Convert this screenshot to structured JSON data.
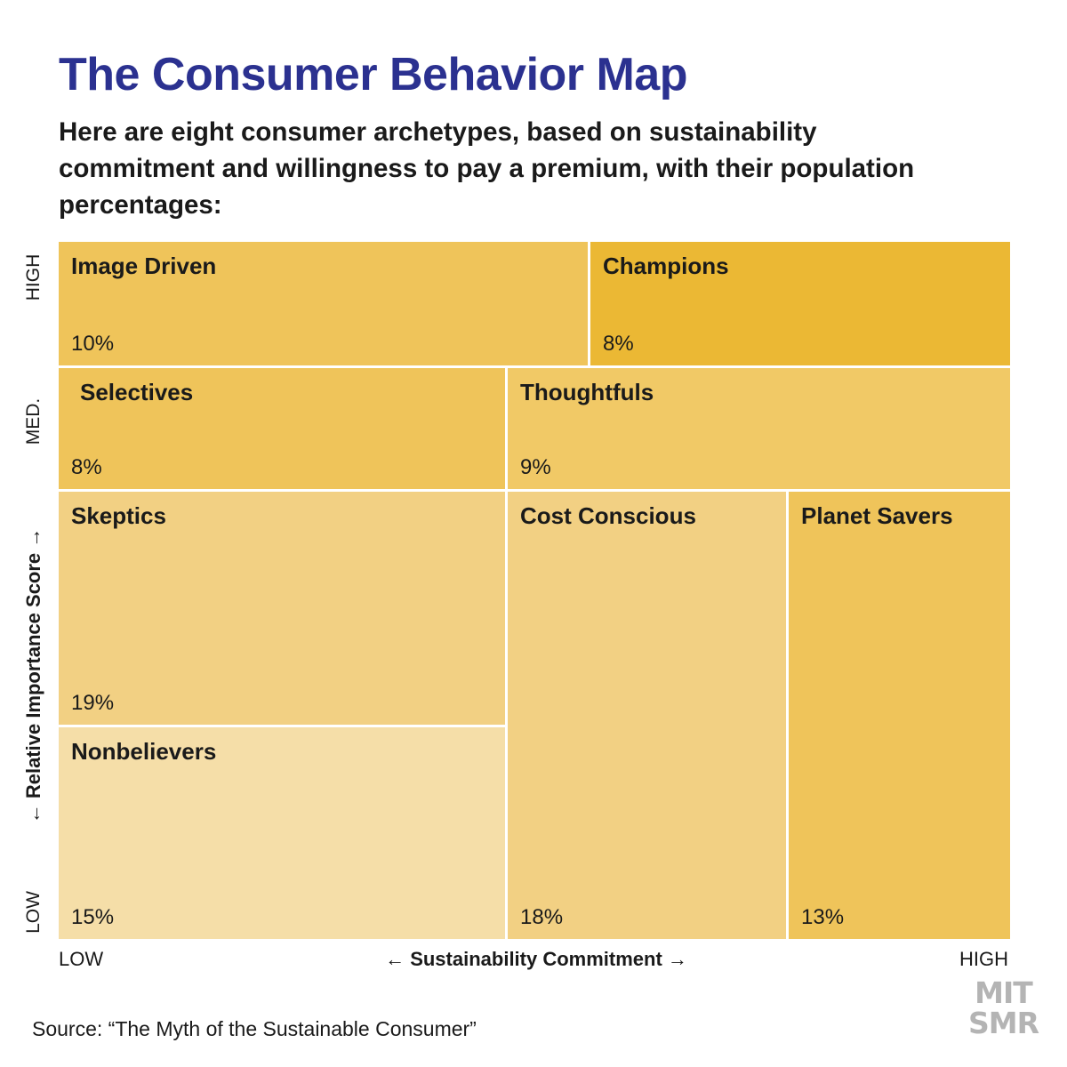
{
  "title": "The Consumer Behavior Map",
  "subtitle": "Here are eight consumer archetypes, based on sustainability commitment and willingness to pay a premium, with their population percentages:",
  "chart_data": {
    "type": "treemap",
    "xlabel": "← Sustainability Commitment →",
    "ylabel": "← Relative Importance Score →",
    "x_ticks": [
      "LOW",
      "HIGH"
    ],
    "y_ticks": [
      "HIGH",
      "MED.",
      "LOW"
    ],
    "cells": [
      {
        "name": "Image Driven",
        "percent": "10%",
        "value": 10,
        "color": "#efc45a"
      },
      {
        "name": "Champions",
        "percent": "8%",
        "value": 8,
        "color": "#ebb834"
      },
      {
        "name": "Selectives",
        "percent": "8%",
        "value": 8,
        "color": "#efc45a"
      },
      {
        "name": "Thoughtfuls",
        "percent": "9%",
        "value": 9,
        "color": "#f1c966"
      },
      {
        "name": "Skeptics",
        "percent": "19%",
        "value": 19,
        "color": "#f2d083"
      },
      {
        "name": "Nonbelievers",
        "percent": "15%",
        "value": 15,
        "color": "#f5dea8"
      },
      {
        "name": "Cost Conscious",
        "percent": "18%",
        "value": 18,
        "color": "#f2d083"
      },
      {
        "name": "Planet Savers",
        "percent": "13%",
        "value": 13,
        "color": "#efc45a"
      }
    ]
  },
  "source": "Source: “The Myth of the Sustainable Consumer”",
  "logo": {
    "line1": "MIT",
    "line2": "SMR"
  }
}
